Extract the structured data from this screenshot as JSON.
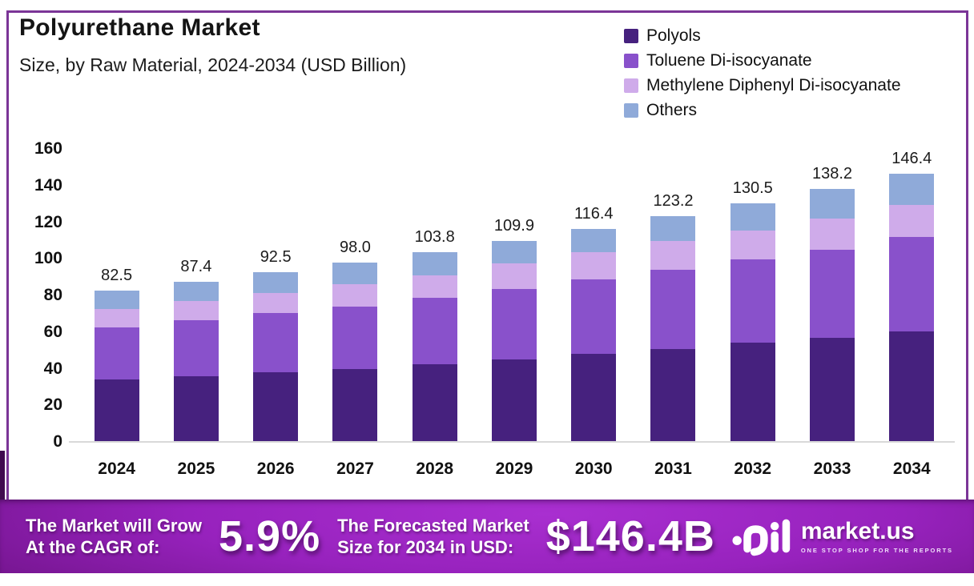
{
  "header": {
    "title": "Polyurethane Market",
    "subtitle": "Size, by Raw Material, 2024-2034 (USD Billion)"
  },
  "chart_data": {
    "type": "bar",
    "stacked": true,
    "title": "Polyurethane Market Size, by Raw Material, 2024-2034 (USD Billion)",
    "categories": [
      "2024",
      "2025",
      "2026",
      "2027",
      "2028",
      "2029",
      "2030",
      "2031",
      "2032",
      "2033",
      "2034"
    ],
    "series": [
      {
        "name": "Polyols",
        "color": "#46217e",
        "values": [
          34.0,
          36.0,
          38.0,
          40.0,
          42.5,
          45.0,
          48.0,
          50.5,
          54.0,
          57.0,
          60.5
        ]
      },
      {
        "name": "Toluene Di-isocyanate",
        "color": "#8951cb",
        "values": [
          28.5,
          30.4,
          32.2,
          34.0,
          36.3,
          38.6,
          40.6,
          43.4,
          45.7,
          48.1,
          51.4
        ]
      },
      {
        "name": "Methylene Diphenyl Di-isocyanate",
        "color": "#cfabea",
        "values": [
          10.0,
          10.5,
          11.0,
          12.0,
          12.0,
          13.9,
          15.0,
          15.8,
          15.8,
          17.0,
          17.3
        ]
      },
      {
        "name": "Others",
        "color": "#8faad9",
        "values": [
          10.0,
          10.5,
          11.3,
          12.0,
          13.0,
          12.4,
          12.8,
          13.5,
          15.0,
          16.1,
          17.2
        ]
      }
    ],
    "totals": [
      82.5,
      87.4,
      92.5,
      98.0,
      103.8,
      109.9,
      116.4,
      123.2,
      130.5,
      138.2,
      146.4
    ],
    "ylim": [
      0,
      160
    ],
    "yticks": [
      0,
      20,
      40,
      60,
      80,
      100,
      120,
      140,
      160
    ],
    "grid": false,
    "legend_position": "top-right"
  },
  "footer": {
    "cagr_line1": "The Market will Grow",
    "cagr_line2": "At the CAGR of:",
    "cagr_value": "5.9%",
    "forecast_line1": "The Forecasted Market",
    "forecast_line2": "Size for 2034 in USD:",
    "forecast_value": "$146.4B",
    "brand": "market.us",
    "tagline": "ONE STOP SHOP FOR THE REPORTS"
  },
  "colors": {
    "frame_border": "#7b3597",
    "fold": "#400a4e",
    "banner_core": "#a92fd0",
    "banner_edge": "#470a54",
    "axis_line": "#d9d9d9"
  }
}
